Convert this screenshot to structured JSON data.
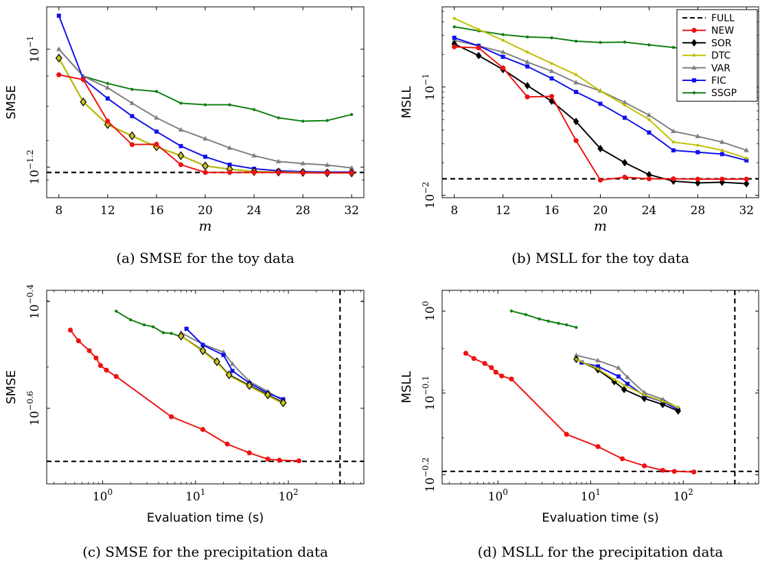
{
  "legend": [
    {
      "name": "FULL",
      "color": "#000000",
      "dashed": true,
      "marker": "none"
    },
    {
      "name": "NEW",
      "color": "#ee1111",
      "marker": "circle"
    },
    {
      "name": "SOR",
      "color": "#000000",
      "marker": "diamond"
    },
    {
      "name": "DTC",
      "color": "#c0c000",
      "marker": "dot"
    },
    {
      "name": "VAR",
      "color": "#808080",
      "marker": "triangle"
    },
    {
      "name": "FIC",
      "color": "#1010ee",
      "marker": "square"
    },
    {
      "name": "SSGP",
      "color": "#108010",
      "marker": "dot"
    }
  ],
  "chart_data": [
    {
      "type": "line",
      "caption": "(a) SMSE for the toy data",
      "xlabel": "m",
      "ylabel": "SMSE",
      "xscale": "linear",
      "yscale": "log",
      "xlim": [
        7,
        33
      ],
      "ylim": [
        0.056,
        0.118
      ],
      "xticks": [
        {
          "v": 8,
          "label": "8"
        },
        {
          "v": 12,
          "label": "12"
        },
        {
          "v": 16,
          "label": "16"
        },
        {
          "v": 20,
          "label": "20"
        },
        {
          "v": 24,
          "label": "24"
        },
        {
          "v": 28,
          "label": "28"
        },
        {
          "v": 32,
          "label": "32"
        }
      ],
      "yticks": [
        {
          "v": 0.1,
          "label": "10",
          "exp": "−1"
        },
        {
          "v": 0.0631,
          "label": "10",
          "exp": "−1.2"
        }
      ],
      "full": 0.0618,
      "series": [
        {
          "name": "NEW",
          "x": [
            8,
            10,
            12,
            14,
            16,
            18,
            20,
            22,
            24,
            26,
            28,
            30,
            32
          ],
          "y": [
            0.0905,
            0.0888,
            0.0755,
            0.0689,
            0.069,
            0.0637,
            0.0618,
            0.0618,
            0.0618,
            0.0618,
            0.0617,
            0.0617,
            0.0617
          ]
        },
        {
          "name": "SOR",
          "x": [
            8,
            10,
            12,
            14,
            16,
            18,
            20,
            22,
            24,
            26,
            28,
            30,
            32
          ],
          "y": [
            0.0966,
            0.0814,
            0.0745,
            0.0713,
            0.0683,
            0.066,
            0.0634,
            0.0626,
            0.062,
            0.0619,
            0.0618,
            0.0617,
            0.0617
          ]
        },
        {
          "name": "DTC",
          "x": [
            8,
            10,
            12,
            14,
            16,
            18,
            20,
            22,
            24,
            26,
            28,
            30,
            32
          ],
          "y": [
            0.0966,
            0.0814,
            0.0745,
            0.0713,
            0.0683,
            0.066,
            0.0634,
            0.0626,
            0.062,
            0.0619,
            0.0618,
            0.0617,
            0.0617
          ]
        },
        {
          "name": "VAR",
          "x": [
            8,
            10,
            12,
            14,
            16,
            18,
            20,
            22,
            24,
            26,
            28,
            30,
            32
          ],
          "y": [
            0.1,
            0.09,
            0.086,
            0.081,
            0.0765,
            0.073,
            0.0705,
            0.068,
            0.066,
            0.0645,
            0.064,
            0.0636,
            0.0629
          ]
        },
        {
          "name": "FIC",
          "x": [
            8,
            10,
            12,
            14,
            16,
            18,
            20,
            22,
            24,
            26,
            28,
            30,
            32
          ],
          "y": [
            0.114,
            0.089,
            0.0825,
            0.077,
            0.0725,
            0.0685,
            0.0657,
            0.0637,
            0.0627,
            0.0622,
            0.062,
            0.0619,
            0.0619
          ]
        },
        {
          "name": "SSGP",
          "x": [
            8,
            10,
            12,
            14,
            16,
            18,
            20,
            22,
            24,
            26,
            28,
            30,
            32
          ],
          "y": [
            0.1,
            0.09,
            0.0875,
            0.0855,
            0.0848,
            0.081,
            0.0805,
            0.0805,
            0.079,
            0.0765,
            0.0755,
            0.0757,
            0.0775
          ]
        }
      ]
    },
    {
      "type": "line",
      "caption": "(b) MSLL for the toy data",
      "xlabel": "m",
      "ylabel": "MSLL",
      "xscale": "linear",
      "yscale": "log",
      "xlim": [
        7,
        33
      ],
      "ylim": [
        0.0095,
        0.55
      ],
      "xticks": [
        {
          "v": 8,
          "label": "8"
        },
        {
          "v": 12,
          "label": "12"
        },
        {
          "v": 16,
          "label": "16"
        },
        {
          "v": 20,
          "label": "20"
        },
        {
          "v": 24,
          "label": "24"
        },
        {
          "v": 28,
          "label": "28"
        },
        {
          "v": 32,
          "label": "32"
        }
      ],
      "yticks": [
        {
          "v": 0.1,
          "label": "10",
          "exp": "−1"
        },
        {
          "v": 0.01,
          "label": "10",
          "exp": "−2"
        }
      ],
      "full": 0.0142,
      "series": [
        {
          "name": "NEW",
          "x": [
            8,
            10,
            12,
            14,
            16,
            18,
            20,
            22,
            24,
            26,
            28,
            30,
            32
          ],
          "y": [
            0.235,
            0.23,
            0.15,
            0.081,
            0.082,
            0.032,
            0.0138,
            0.0147,
            0.0142,
            0.0142,
            0.0141,
            0.0141,
            0.0141
          ]
        },
        {
          "name": "SOR",
          "x": [
            8,
            10,
            12,
            14,
            16,
            18,
            20,
            22,
            24,
            26,
            28,
            30,
            32
          ],
          "y": [
            0.25,
            0.195,
            0.145,
            0.103,
            0.074,
            0.048,
            0.027,
            0.02,
            0.0155,
            0.0135,
            0.013,
            0.0132,
            0.0128
          ]
        },
        {
          "name": "DTC",
          "x": [
            8,
            10,
            12,
            14,
            16,
            18,
            20,
            22,
            24,
            26,
            28,
            30,
            32
          ],
          "y": [
            0.43,
            0.34,
            0.27,
            0.21,
            0.165,
            0.13,
            0.092,
            0.068,
            0.05,
            0.031,
            0.029,
            0.026,
            0.022
          ]
        },
        {
          "name": "VAR",
          "x": [
            8,
            10,
            12,
            14,
            16,
            18,
            20,
            22,
            24,
            26,
            28,
            30,
            32
          ],
          "y": [
            0.27,
            0.24,
            0.21,
            0.17,
            0.14,
            0.11,
            0.092,
            0.072,
            0.055,
            0.039,
            0.035,
            0.031,
            0.026
          ]
        },
        {
          "name": "FIC",
          "x": [
            8,
            10,
            12,
            14,
            16,
            18,
            20,
            22,
            24,
            26,
            28,
            30,
            32
          ],
          "y": [
            0.285,
            0.24,
            0.19,
            0.155,
            0.12,
            0.09,
            0.07,
            0.052,
            0.038,
            0.026,
            0.025,
            0.024,
            0.021
          ]
        },
        {
          "name": "SSGP",
          "x": [
            8,
            10,
            12,
            14,
            16,
            18,
            20,
            22,
            24,
            26,
            28,
            30,
            32
          ],
          "y": [
            0.36,
            0.33,
            0.305,
            0.29,
            0.285,
            0.265,
            0.258,
            0.26,
            0.245,
            0.232,
            0.22,
            0.215,
            0.21
          ]
        }
      ]
    },
    {
      "type": "line",
      "caption": "(c) SMSE for the precipitation data",
      "xlabel": "Evaluation time (s)",
      "ylabel": "SMSE",
      "xscale": "log",
      "yscale": "log",
      "xlim": [
        0.25,
        650
      ],
      "ylim": [
        0.181,
        0.418
      ],
      "xticks": [
        {
          "v": 1,
          "label": "10",
          "exp": "0"
        },
        {
          "v": 10,
          "label": "10",
          "exp": "1"
        },
        {
          "v": 100,
          "label": "10",
          "exp": "2"
        }
      ],
      "yticks": [
        {
          "v": 0.398,
          "label": "10",
          "exp": "−0.4"
        },
        {
          "v": 0.251,
          "label": "10",
          "exp": "−0.6"
        }
      ],
      "full": 0.1995,
      "full_time": 360,
      "series": [
        {
          "name": "NEW",
          "x": [
            0.45,
            0.55,
            0.72,
            0.85,
            0.95,
            1.1,
            1.4,
            5.5,
            12,
            22,
            38,
            60,
            80,
            130
          ],
          "y": [
            0.352,
            0.336,
            0.322,
            0.312,
            0.302,
            0.296,
            0.288,
            0.242,
            0.229,
            0.215,
            0.207,
            0.2015,
            0.2005,
            0.2
          ]
        },
        {
          "name": "SOR",
          "x": [
            7,
            12,
            17,
            23,
            38,
            60,
            88
          ],
          "y": [
            0.343,
            0.322,
            0.307,
            0.29,
            0.277,
            0.266,
            0.257
          ]
        },
        {
          "name": "DTC",
          "x": [
            7,
            12,
            17,
            23,
            38,
            60,
            88
          ],
          "y": [
            0.343,
            0.321,
            0.306,
            0.289,
            0.276,
            0.265,
            0.256
          ]
        },
        {
          "name": "VAR",
          "x": [
            7,
            12,
            20,
            25,
            38,
            60,
            88
          ],
          "y": [
            0.348,
            0.331,
            0.32,
            0.304,
            0.282,
            0.27,
            0.259
          ]
        },
        {
          "name": "FIC",
          "x": [
            8,
            12,
            20,
            25,
            38,
            60,
            88
          ],
          "y": [
            0.354,
            0.33,
            0.316,
            0.295,
            0.28,
            0.268,
            0.261
          ]
        },
        {
          "name": "SSGP",
          "x": [
            1.4,
            2.0,
            2.8,
            3.5,
            4.5,
            5.5,
            7
          ],
          "y": [
            0.382,
            0.368,
            0.36,
            0.357,
            0.348,
            0.347,
            0.342
          ]
        }
      ]
    },
    {
      "type": "line",
      "caption": "(d) MSLL for the precipitation data",
      "xlabel": "Evaluation time (s)",
      "ylabel": "MSLL",
      "xscale": "log",
      "yscale": "log",
      "xlim": [
        0.25,
        650
      ],
      "ylim": [
        0.615,
        1.06
      ],
      "xticks": [
        {
          "v": 1,
          "label": "10",
          "exp": "0"
        },
        {
          "v": 10,
          "label": "10",
          "exp": "1"
        },
        {
          "v": 100,
          "label": "10",
          "exp": "2"
        }
      ],
      "yticks": [
        {
          "v": 1.0,
          "label": "10",
          "exp": "0"
        },
        {
          "v": 0.794,
          "label": "10",
          "exp": "−0.1"
        },
        {
          "v": 0.631,
          "label": "10",
          "exp": "−0.2"
        }
      ],
      "full": 0.637,
      "full_time": 360,
      "series": [
        {
          "name": "NEW",
          "x": [
            0.45,
            0.55,
            0.72,
            0.85,
            0.95,
            1.1,
            1.4,
            5.5,
            12,
            22,
            38,
            60,
            80,
            130
          ],
          "y": [
            0.888,
            0.875,
            0.863,
            0.853,
            0.842,
            0.833,
            0.826,
            0.707,
            0.683,
            0.66,
            0.647,
            0.639,
            0.637,
            0.636
          ]
        },
        {
          "name": "SOR",
          "x": [
            7,
            12,
            18,
            23,
            38,
            60,
            88
          ],
          "y": [
            0.873,
            0.848,
            0.82,
            0.802,
            0.782,
            0.769,
            0.755
          ]
        },
        {
          "name": "DTC",
          "x": [
            7,
            12,
            18,
            23,
            38,
            60,
            88
          ],
          "y": [
            0.873,
            0.85,
            0.825,
            0.812,
            0.79,
            0.776,
            0.763
          ]
        },
        {
          "name": "VAR",
          "x": [
            7,
            12,
            20,
            25,
            38,
            60,
            88
          ],
          "y": [
            0.883,
            0.87,
            0.852,
            0.83,
            0.795,
            0.78,
            0.762
          ]
        },
        {
          "name": "FIC",
          "x": [
            8,
            12,
            20,
            25,
            38,
            60,
            88
          ],
          "y": [
            0.865,
            0.856,
            0.832,
            0.815,
            0.788,
            0.775,
            0.758
          ]
        },
        {
          "name": "SSGP",
          "x": [
            1.4,
            2.0,
            2.8,
            3.5,
            4.5,
            5.5,
            7
          ],
          "y": [
            1.0,
            0.99,
            0.978,
            0.972,
            0.966,
            0.962,
            0.955
          ]
        }
      ]
    }
  ]
}
